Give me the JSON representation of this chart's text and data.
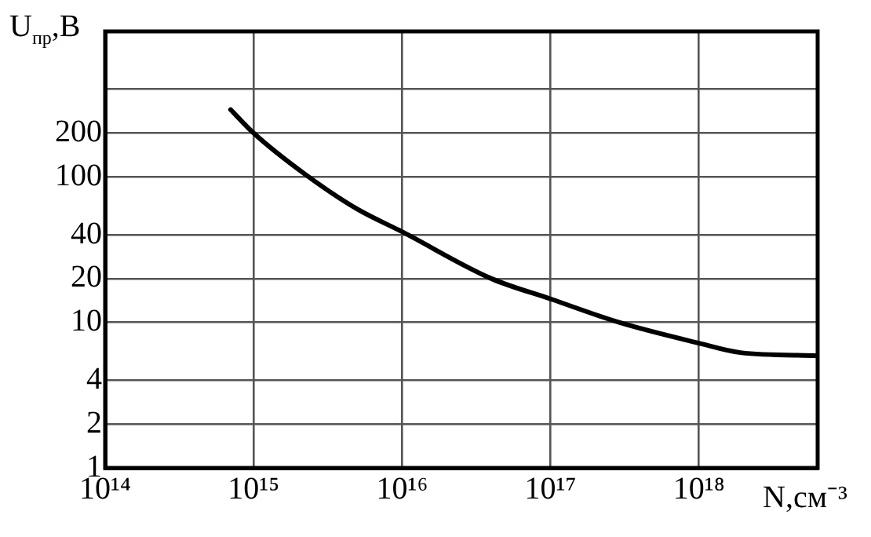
{
  "chart_data": {
    "type": "line",
    "xlabel": "N,см⁻³",
    "ylabel": "U$_{пр}$,В",
    "log": "xy",
    "grid": true,
    "legend": false,
    "marker": "none",
    "line_style": "solid",
    "xlim": [
      100000000000000.0,
      6.3e+18
    ],
    "xticks": [
      {
        "value": 100000000000000.0,
        "label": "10¹⁴"
      },
      {
        "value": 1000000000000000.0,
        "label": "10¹⁵"
      },
      {
        "value": 1e+16,
        "label": "10¹⁶"
      },
      {
        "value": 1e+17,
        "label": "10¹⁷"
      },
      {
        "value": 1e+18,
        "label": "10¹⁸"
      }
    ],
    "ylim": [
      1,
      1000
    ],
    "yticks": [
      1,
      2,
      4,
      10,
      20,
      40,
      100,
      200,
      {
        "value": 400,
        "label": null
      }
    ],
    "series": [
      {
        "color": "#000000",
        "x": [
          700000000000000.0,
          1000000000000000.0,
          2200000000000000.0,
          5000000000000000.0,
          1e+16,
          4e+16,
          1e+17,
          2.9e+17,
          1e+18,
          1.9e+18,
          6.3e+18
        ],
        "values": [
          290,
          200,
          105,
          60,
          42,
          20,
          14.5,
          10,
          7.2,
          6.2,
          5.9
        ]
      }
    ]
  }
}
